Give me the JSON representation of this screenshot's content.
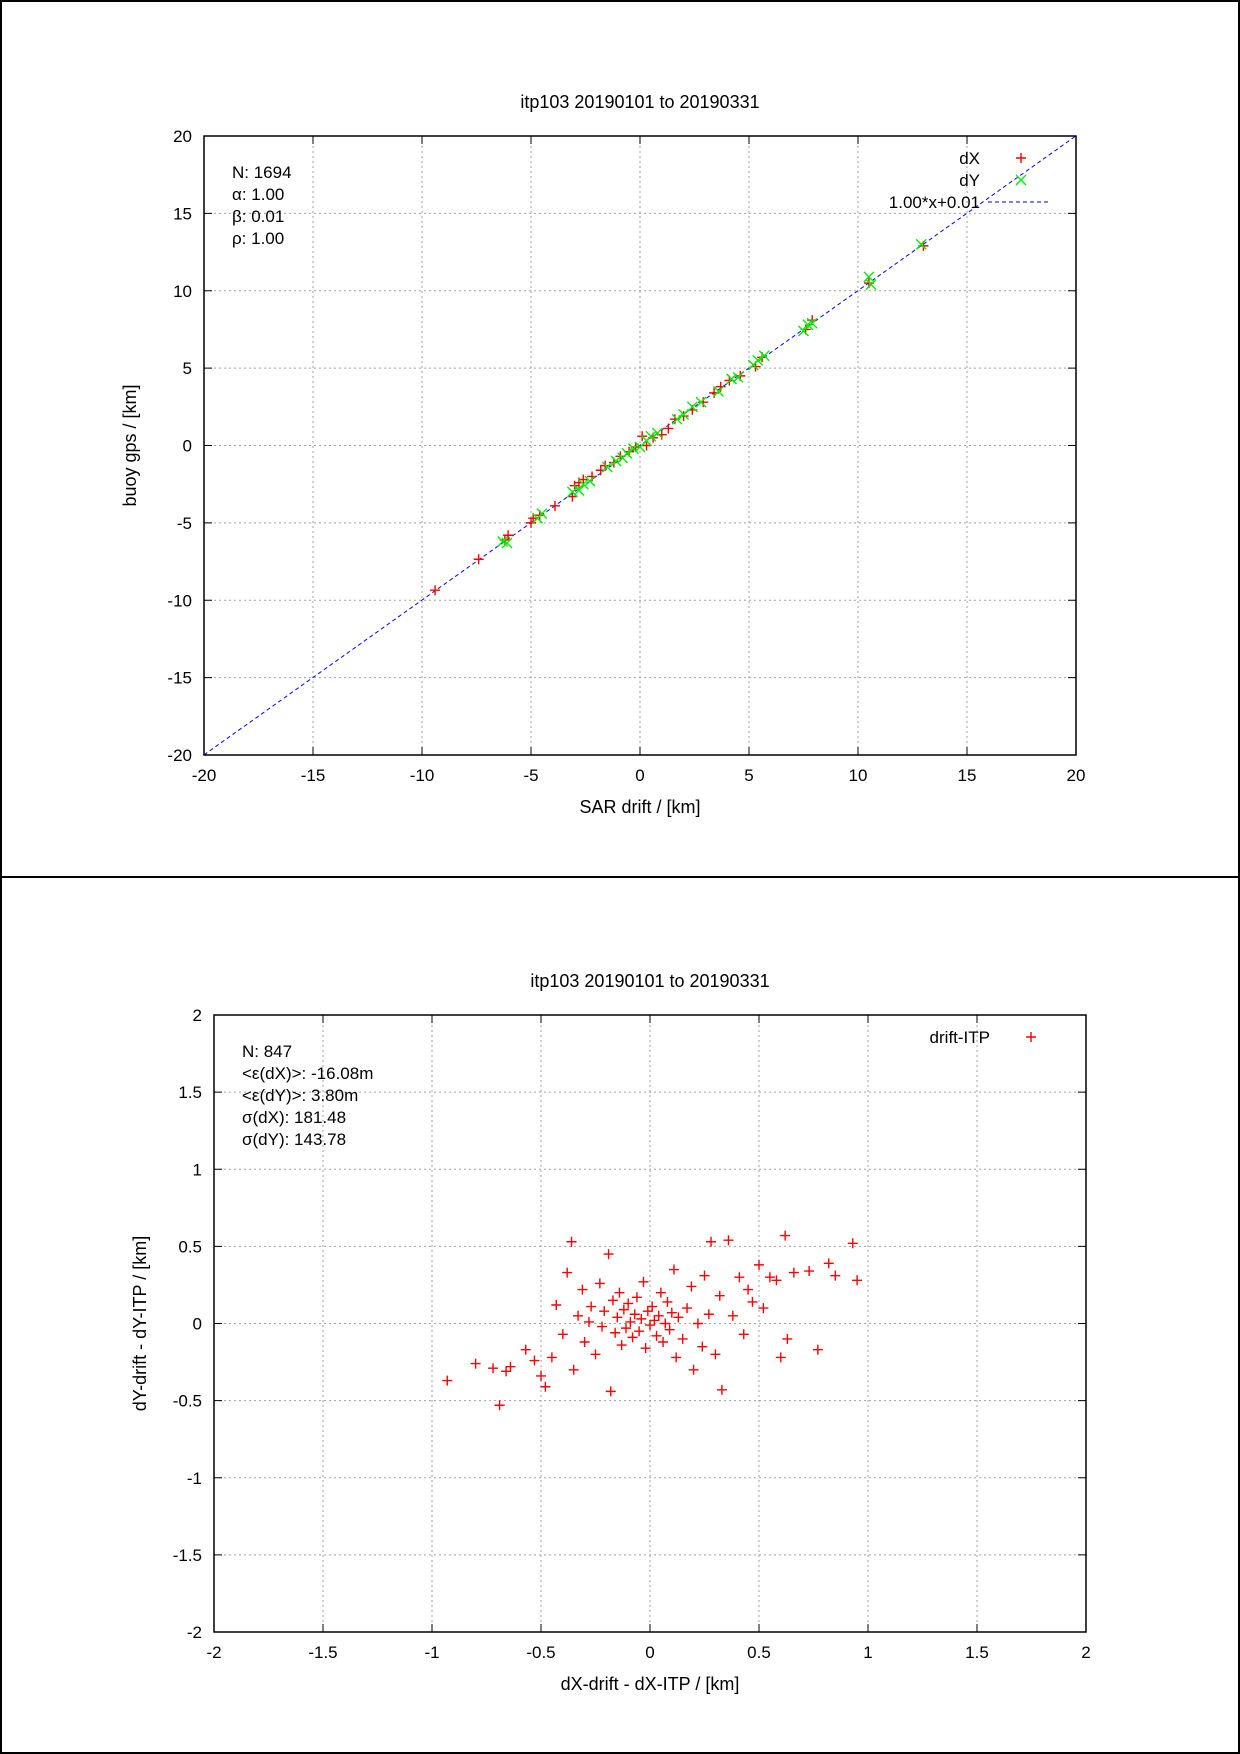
{
  "chart_data": [
    {
      "type": "scatter",
      "title": "itp103 20190101 to 20190331",
      "xlabel": "SAR drift / [km]",
      "ylabel": "buoy gps / [km]",
      "xlim": [
        -20,
        20
      ],
      "ylim": [
        -20,
        20
      ],
      "xticks": [
        -20,
        -15,
        -10,
        -5,
        0,
        5,
        10,
        15,
        20
      ],
      "yticks": [
        -20,
        -15,
        -10,
        -5,
        0,
        5,
        10,
        15,
        20
      ],
      "grid": true,
      "legend_position": "top-right",
      "stats": [
        "N: 1694",
        "α: 1.00",
        "β: 0.01",
        "ρ: 1.00"
      ],
      "fit_line": {
        "name": "1.00*x+0.01",
        "slope": 1.0,
        "intercept": 0.01,
        "color": "#0000ff",
        "style": "dashed"
      },
      "series": [
        {
          "name": "dX",
          "marker": "+",
          "color": "#ff0000",
          "points": [
            [
              -9.4,
              -9.35
            ],
            [
              -7.4,
              -7.35
            ],
            [
              -6.2,
              -6.1
            ],
            [
              -6.05,
              -5.8
            ],
            [
              -5.0,
              -5.0
            ],
            [
              -4.9,
              -4.7
            ],
            [
              -4.6,
              -4.5
            ],
            [
              -3.9,
              -3.9
            ],
            [
              -3.1,
              -3.3
            ],
            [
              -3.0,
              -2.6
            ],
            [
              -2.8,
              -2.4
            ],
            [
              -2.6,
              -2.2
            ],
            [
              -2.2,
              -2.0
            ],
            [
              -1.8,
              -1.6
            ],
            [
              -1.6,
              -1.3
            ],
            [
              -1.2,
              -1.1
            ],
            [
              -0.9,
              -0.7
            ],
            [
              -0.5,
              -0.4
            ],
            [
              -0.2,
              -0.1
            ],
            [
              0.1,
              0.6
            ],
            [
              0.3,
              0.0
            ],
            [
              0.6,
              0.5
            ],
            [
              1.0,
              0.7
            ],
            [
              1.3,
              1.1
            ],
            [
              1.6,
              1.7
            ],
            [
              2.0,
              1.9
            ],
            [
              2.4,
              2.3
            ],
            [
              2.9,
              2.8
            ],
            [
              3.4,
              3.4
            ],
            [
              3.7,
              3.8
            ],
            [
              4.1,
              4.2
            ],
            [
              4.6,
              4.5
            ],
            [
              5.3,
              5.1
            ],
            [
              5.6,
              5.7
            ],
            [
              7.6,
              7.5
            ],
            [
              7.9,
              8.1
            ],
            [
              10.5,
              10.5
            ],
            [
              13.0,
              12.9
            ]
          ]
        },
        {
          "name": "dY",
          "marker": "x",
          "color": "#00ee00",
          "points": [
            [
              -6.3,
              -6.2
            ],
            [
              -6.1,
              -6.3
            ],
            [
              -4.7,
              -4.7
            ],
            [
              -4.5,
              -4.4
            ],
            [
              -3.1,
              -3.0
            ],
            [
              -2.8,
              -2.9
            ],
            [
              -2.6,
              -2.5
            ],
            [
              -2.3,
              -2.3
            ],
            [
              -1.5,
              -1.4
            ],
            [
              -1.1,
              -1.0
            ],
            [
              -0.8,
              -0.8
            ],
            [
              -0.6,
              -0.5
            ],
            [
              -0.3,
              -0.2
            ],
            [
              0.0,
              -0.1
            ],
            [
              0.3,
              0.3
            ],
            [
              0.5,
              0.6
            ],
            [
              0.8,
              0.8
            ],
            [
              1.7,
              1.7
            ],
            [
              2.0,
              2.0
            ],
            [
              2.4,
              2.5
            ],
            [
              2.8,
              2.8
            ],
            [
              3.6,
              3.5
            ],
            [
              4.2,
              4.3
            ],
            [
              4.5,
              4.4
            ],
            [
              5.2,
              5.2
            ],
            [
              5.4,
              5.5
            ],
            [
              5.7,
              5.8
            ],
            [
              7.5,
              7.4
            ],
            [
              7.7,
              7.8
            ],
            [
              7.9,
              7.9
            ],
            [
              10.5,
              10.9
            ],
            [
              10.6,
              10.4
            ],
            [
              12.9,
              13.0
            ]
          ]
        }
      ]
    },
    {
      "type": "scatter",
      "title": "itp103 20190101 to 20190331",
      "xlabel": "dX-drift - dX-ITP / [km]",
      "ylabel": "dY-drift - dY-ITP / [km]",
      "xlim": [
        -2,
        2
      ],
      "ylim": [
        -2,
        2
      ],
      "xticks": [
        -2,
        -1.5,
        -1,
        -0.5,
        0,
        0.5,
        1,
        1.5,
        2
      ],
      "yticks": [
        -2,
        -1.5,
        -1,
        -0.5,
        0,
        0.5,
        1,
        1.5,
        2
      ],
      "grid": true,
      "legend_position": "top-right",
      "stats": [
        "N: 847",
        "<ε(dX)>:  -16.08m",
        "<ε(dY)>: 3.80m",
        "σ(dX):  181.48",
        "σ(dY):  143.78"
      ],
      "series": [
        {
          "name": "drift-ITP",
          "marker": "+",
          "color": "#ff0000",
          "points": [
            [
              -0.93,
              -0.37
            ],
            [
              -0.8,
              -0.26
            ],
            [
              -0.72,
              -0.29
            ],
            [
              -0.69,
              -0.53
            ],
            [
              -0.66,
              -0.31
            ],
            [
              -0.64,
              -0.28
            ],
            [
              -0.57,
              -0.17
            ],
            [
              -0.53,
              -0.24
            ],
            [
              -0.5,
              -0.34
            ],
            [
              -0.48,
              -0.41
            ],
            [
              -0.45,
              -0.22
            ],
            [
              -0.43,
              0.12
            ],
            [
              -0.4,
              -0.07
            ],
            [
              -0.38,
              0.33
            ],
            [
              -0.36,
              0.53
            ],
            [
              -0.35,
              -0.3
            ],
            [
              -0.33,
              0.05
            ],
            [
              -0.31,
              0.22
            ],
            [
              -0.3,
              -0.12
            ],
            [
              -0.28,
              0.01
            ],
            [
              -0.27,
              0.11
            ],
            [
              -0.25,
              -0.2
            ],
            [
              -0.23,
              0.26
            ],
            [
              -0.22,
              -0.02
            ],
            [
              -0.21,
              0.08
            ],
            [
              -0.19,
              0.45
            ],
            [
              -0.18,
              -0.44
            ],
            [
              -0.17,
              0.15
            ],
            [
              -0.16,
              -0.06
            ],
            [
              -0.15,
              0.04
            ],
            [
              -0.14,
              0.2
            ],
            [
              -0.13,
              -0.14
            ],
            [
              -0.12,
              0.09
            ],
            [
              -0.11,
              -0.03
            ],
            [
              -0.1,
              0.13
            ],
            [
              -0.09,
              0.01
            ],
            [
              -0.08,
              -0.09
            ],
            [
              -0.07,
              0.06
            ],
            [
              -0.06,
              0.17
            ],
            [
              -0.05,
              -0.05
            ],
            [
              -0.04,
              0.03
            ],
            [
              -0.03,
              0.27
            ],
            [
              -0.02,
              -0.16
            ],
            [
              -0.01,
              0.08
            ],
            [
              0.0,
              -0.01
            ],
            [
              0.01,
              0.11
            ],
            [
              0.02,
              0.02
            ],
            [
              0.03,
              -0.08
            ],
            [
              0.04,
              0.05
            ],
            [
              0.05,
              0.2
            ],
            [
              0.06,
              -0.12
            ],
            [
              0.07,
              0.0
            ],
            [
              0.08,
              0.14
            ],
            [
              0.09,
              -0.04
            ],
            [
              0.1,
              0.07
            ],
            [
              0.11,
              0.35
            ],
            [
              0.12,
              -0.22
            ],
            [
              0.13,
              0.04
            ],
            [
              0.15,
              -0.1
            ],
            [
              0.17,
              0.1
            ],
            [
              0.19,
              0.24
            ],
            [
              0.2,
              -0.3
            ],
            [
              0.22,
              0.0
            ],
            [
              0.24,
              -0.15
            ],
            [
              0.25,
              0.31
            ],
            [
              0.27,
              0.06
            ],
            [
              0.28,
              0.53
            ],
            [
              0.3,
              -0.2
            ],
            [
              0.32,
              0.18
            ],
            [
              0.33,
              -0.43
            ],
            [
              0.36,
              0.54
            ],
            [
              0.38,
              0.05
            ],
            [
              0.41,
              0.3
            ],
            [
              0.43,
              -0.07
            ],
            [
              0.45,
              0.22
            ],
            [
              0.47,
              0.14
            ],
            [
              0.5,
              0.38
            ],
            [
              0.52,
              0.1
            ],
            [
              0.55,
              0.3
            ],
            [
              0.58,
              0.28
            ],
            [
              0.6,
              -0.22
            ],
            [
              0.62,
              0.57
            ],
            [
              0.63,
              -0.1
            ],
            [
              0.66,
              0.33
            ],
            [
              0.73,
              0.34
            ],
            [
              0.77,
              -0.17
            ],
            [
              0.82,
              0.39
            ],
            [
              0.85,
              0.31
            ],
            [
              0.93,
              0.52
            ],
            [
              0.95,
              0.28
            ]
          ]
        }
      ]
    }
  ]
}
